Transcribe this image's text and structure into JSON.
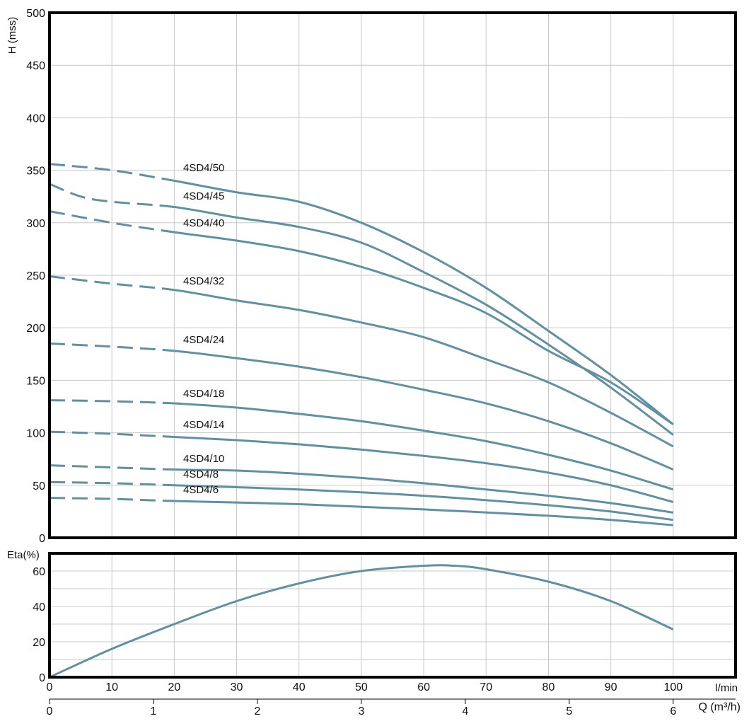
{
  "chart_data": [
    {
      "type": "line",
      "title": "",
      "ylabel": "H (mss)",
      "xlabel": "l/min",
      "xlim": [
        0,
        110
      ],
      "ylim": [
        0,
        500
      ],
      "grid": true,
      "xticks": [
        0,
        10,
        20,
        30,
        40,
        50,
        60,
        70,
        80,
        90,
        100
      ],
      "yticks": [
        0,
        50,
        100,
        150,
        200,
        250,
        300,
        350,
        400,
        450,
        500
      ],
      "dashed_until_x": 20,
      "color": "#6390a0",
      "series": [
        {
          "name": "4SD4/50",
          "x": [
            0,
            10,
            20,
            30,
            40,
            50,
            60,
            70,
            80,
            90,
            100
          ],
          "y": [
            356,
            350,
            340,
            329,
            320,
            300,
            272,
            238,
            197,
            155,
            108
          ]
        },
        {
          "name": "4SD4/45",
          "x": [
            0,
            5,
            10,
            20,
            30,
            40,
            50,
            60,
            70,
            80,
            90,
            100
          ],
          "y": [
            337,
            325,
            320,
            315,
            305,
            296,
            281,
            253,
            222,
            184,
            143,
            98
          ]
        },
        {
          "name": "4SD4/40",
          "x": [
            0,
            10,
            20,
            30,
            40,
            50,
            60,
            70,
            80,
            90,
            100
          ],
          "y": [
            311,
            300,
            291,
            283,
            273,
            258,
            238,
            214,
            178,
            148,
            108
          ]
        },
        {
          "name": "4SD4/32",
          "x": [
            0,
            10,
            20,
            30,
            40,
            50,
            60,
            70,
            80,
            90,
            100
          ],
          "y": [
            249,
            242,
            236,
            226,
            217,
            205,
            191,
            170,
            148,
            119,
            87
          ]
        },
        {
          "name": "4SD4/24",
          "x": [
            0,
            10,
            20,
            30,
            40,
            50,
            60,
            70,
            80,
            90,
            100
          ],
          "y": [
            185,
            182,
            178,
            171,
            163,
            153,
            141,
            128,
            111,
            90,
            65
          ]
        },
        {
          "name": "4SD4/18",
          "x": [
            0,
            10,
            20,
            30,
            40,
            50,
            60,
            70,
            80,
            90,
            100
          ],
          "y": [
            131,
            130,
            128,
            124,
            118,
            111,
            102,
            92,
            79,
            64,
            46
          ]
        },
        {
          "name": "4SD4/14",
          "x": [
            0,
            10,
            20,
            30,
            40,
            50,
            60,
            70,
            80,
            90,
            100
          ],
          "y": [
            101,
            99,
            96,
            93,
            89,
            84,
            78,
            71,
            62,
            50,
            34
          ]
        },
        {
          "name": "4SD4/10",
          "x": [
            0,
            10,
            20,
            30,
            40,
            50,
            60,
            70,
            80,
            90,
            100
          ],
          "y": [
            69,
            67,
            65,
            64,
            61,
            57,
            52,
            46,
            40,
            33,
            24
          ]
        },
        {
          "name": "4SD4/8",
          "x": [
            0,
            10,
            20,
            40,
            60,
            80,
            90,
            100
          ],
          "y": [
            53,
            52,
            50,
            46,
            40,
            31,
            25,
            17
          ]
        },
        {
          "name": "4SD4/6",
          "x": [
            0,
            10,
            20,
            40,
            60,
            80,
            90,
            100
          ],
          "y": [
            38,
            37,
            35,
            32,
            27,
            21,
            17,
            12
          ]
        }
      ]
    },
    {
      "type": "line",
      "title": "",
      "ylabel": "Eta(%)",
      "xlabel": "l/min",
      "xlim": [
        0,
        110
      ],
      "ylim": [
        0,
        70
      ],
      "grid": true,
      "xticks": [
        0,
        10,
        20,
        30,
        40,
        50,
        60,
        70,
        80,
        90,
        100
      ],
      "yticks": [
        0,
        20,
        40,
        60
      ],
      "color": "#6390a0",
      "series": [
        {
          "name": "Eta",
          "x": [
            0,
            10,
            20,
            30,
            40,
            50,
            60,
            65,
            70,
            80,
            90,
            100
          ],
          "y": [
            0,
            16,
            30,
            43,
            53,
            60,
            63,
            63,
            61,
            54,
            43,
            27
          ]
        }
      ]
    }
  ],
  "secondary_axis": {
    "label": "Q (m³/h)",
    "xlim": [
      0,
      6
    ],
    "ticks": [
      0,
      1,
      2,
      3,
      4,
      5,
      6
    ]
  },
  "units_label": "l/min"
}
